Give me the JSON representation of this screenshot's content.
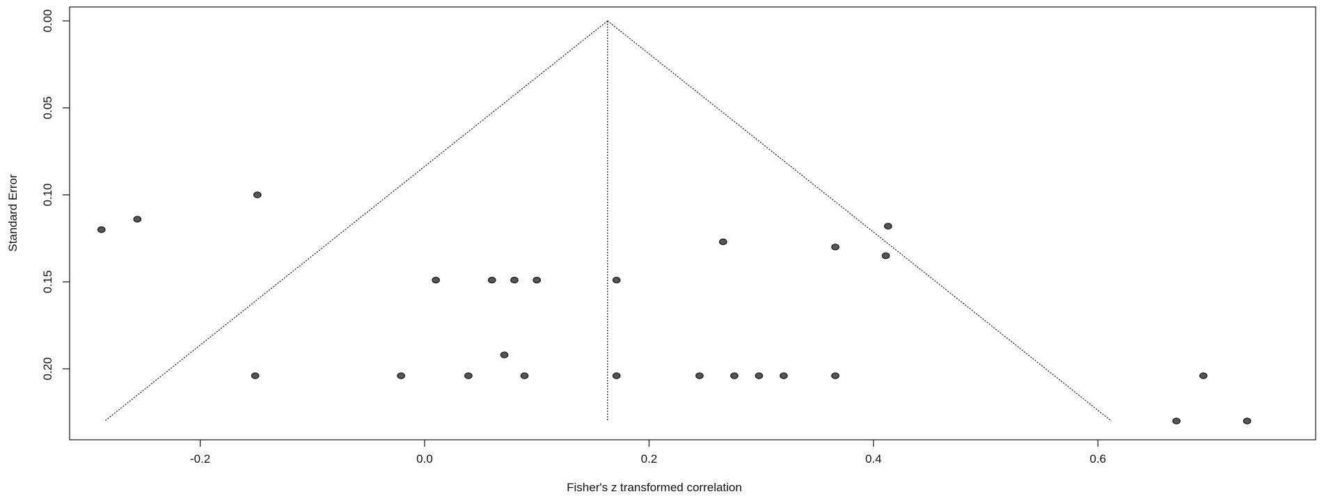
{
  "chart_data": {
    "type": "scatter",
    "title": "",
    "xlabel": "Fisher's z transformed correlation",
    "ylabel": "Standard Error",
    "xlim": [
      -0.32,
      0.78
    ],
    "ylim": [
      0.0,
      0.242
    ],
    "y_inverted": true,
    "grid": false,
    "x_ticks": [
      -0.2,
      0.0,
      0.2,
      0.4,
      0.6
    ],
    "x_tick_labels": [
      "-0.2",
      "0.0",
      "0.2",
      "0.4",
      "0.6"
    ],
    "y_ticks": [
      0.0,
      0.05,
      0.1,
      0.15,
      0.2
    ],
    "y_tick_labels": [
      "0.00",
      "0.05",
      "0.10",
      "0.15",
      "0.20"
    ],
    "summary_estimate": 0.163,
    "funnel": {
      "apex": [
        0.163,
        0.0
      ],
      "base_se": 0.23,
      "left_base_x": -0.285,
      "right_base_x": 0.612
    },
    "points": [
      {
        "x": -0.288,
        "y": 0.12
      },
      {
        "x": -0.256,
        "y": 0.114
      },
      {
        "x": -0.149,
        "y": 0.1
      },
      {
        "x": 0.01,
        "y": 0.149
      },
      {
        "x": 0.06,
        "y": 0.149
      },
      {
        "x": 0.08,
        "y": 0.149
      },
      {
        "x": 0.1,
        "y": 0.149
      },
      {
        "x": 0.171,
        "y": 0.149
      },
      {
        "x": 0.266,
        "y": 0.127
      },
      {
        "x": 0.366,
        "y": 0.13
      },
      {
        "x": 0.413,
        "y": 0.118
      },
      {
        "x": 0.411,
        "y": 0.135
      },
      {
        "x": 0.071,
        "y": 0.192
      },
      {
        "x": -0.151,
        "y": 0.204
      },
      {
        "x": -0.021,
        "y": 0.204
      },
      {
        "x": 0.039,
        "y": 0.204
      },
      {
        "x": 0.089,
        "y": 0.204
      },
      {
        "x": 0.171,
        "y": 0.204
      },
      {
        "x": 0.245,
        "y": 0.204
      },
      {
        "x": 0.276,
        "y": 0.204
      },
      {
        "x": 0.298,
        "y": 0.204
      },
      {
        "x": 0.32,
        "y": 0.204
      },
      {
        "x": 0.366,
        "y": 0.204
      },
      {
        "x": 0.694,
        "y": 0.204
      },
      {
        "x": 0.67,
        "y": 0.23
      },
      {
        "x": 0.733,
        "y": 0.23
      }
    ]
  }
}
